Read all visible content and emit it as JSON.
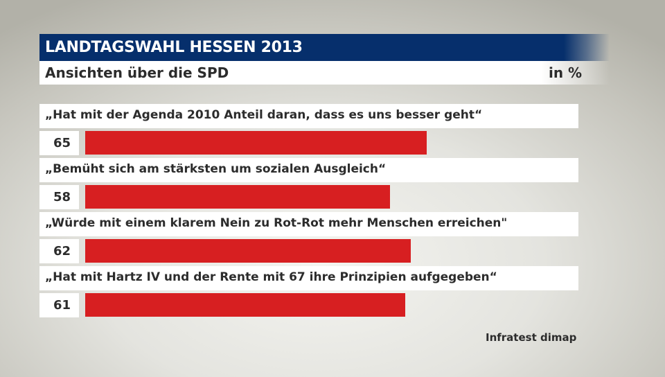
{
  "header": {
    "title": "LANDTAGSWAHL HESSEN 2013",
    "subtitle": "Ansichten über die SPD",
    "unit": "in %"
  },
  "rows": [
    {
      "label": "„Hat mit der Agenda 2010 Anteil daran, dass es uns besser geht“",
      "value": "65"
    },
    {
      "label": "„Bemüht sich am stärksten um sozialen Ausgleich“",
      "value": "58"
    },
    {
      "label": "„Würde mit einem klarem Nein zu Rot-Rot mehr Menschen erreichen\"",
      "value": "62"
    },
    {
      "label": "„Hat mit Hartz IV und der Rente mit 67 ihre Prinzipien aufgegeben“",
      "value": "61"
    }
  ],
  "source": "Infratest dimap",
  "colors": {
    "title_bg": "#062f6c",
    "bar": "#d71f21"
  },
  "chart_data": {
    "type": "bar",
    "orientation": "horizontal",
    "title": "LANDTAGSWAHL HESSEN 2013",
    "subtitle": "Ansichten über die SPD",
    "unit": "in %",
    "categories": [
      "„Hat mit der Agenda 2010 Anteil daran, dass es uns besser geht“",
      "„Bemüht sich am stärksten um sozialen Ausgleich“",
      "„Würde mit einem klarem Nein zu Rot-Rot mehr Menschen erreichen\"",
      "„Hat mit Hartz IV und der Rente mit 67 ihre Prinzipien aufgegeben“"
    ],
    "values": [
      65,
      58,
      62,
      61
    ],
    "xlabel": "",
    "ylabel": "",
    "xlim": [
      0,
      100
    ],
    "grid": false,
    "legend": null,
    "source": "Infratest dimap"
  }
}
